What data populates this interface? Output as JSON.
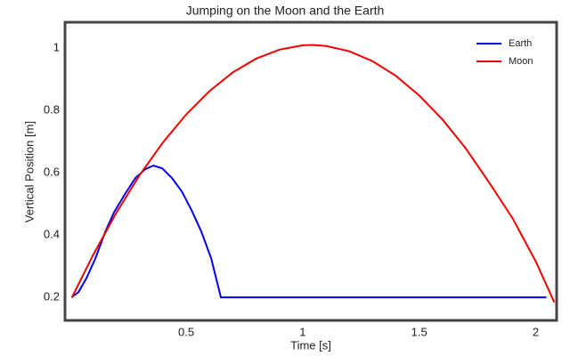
{
  "chart_data": {
    "type": "line",
    "title": "Jumping on the Moon and the Earth",
    "xlabel": "Time [s]",
    "ylabel": "Vertical Position [m]",
    "xlim": [
      -0.02,
      2.09
    ],
    "ylim": [
      0.126,
      1.083
    ],
    "xticks": [
      0.5,
      1,
      1.5,
      2
    ],
    "yticks": [
      0.2,
      0.4,
      0.6,
      0.8,
      1
    ],
    "grid": false,
    "legend": "upper right",
    "series": [
      {
        "name": "Earth",
        "color": "#0000ee",
        "x": [
          0.008,
          0.038,
          0.073,
          0.111,
          0.153,
          0.191,
          0.237,
          0.282,
          0.324,
          0.359,
          0.397,
          0.439,
          0.481,
          0.523,
          0.565,
          0.607,
          0.649,
          2.046
        ],
        "values": [
          0.2,
          0.217,
          0.263,
          0.326,
          0.411,
          0.474,
          0.531,
          0.583,
          0.611,
          0.623,
          0.614,
          0.583,
          0.54,
          0.48,
          0.411,
          0.326,
          0.2,
          0.2
        ]
      },
      {
        "name": "Moon",
        "color": "#ee0000",
        "x": [
          0.01,
          0.1,
          0.2,
          0.3,
          0.4,
          0.5,
          0.6,
          0.7,
          0.8,
          0.9,
          1.0,
          1.04,
          1.1,
          1.2,
          1.3,
          1.4,
          1.5,
          1.6,
          1.7,
          1.8,
          1.9,
          2.0,
          2.08
        ],
        "values": [
          0.2,
          0.335,
          0.471,
          0.592,
          0.697,
          0.787,
          0.862,
          0.922,
          0.966,
          0.995,
          1.009,
          1.01,
          1.007,
          0.99,
          0.958,
          0.911,
          0.848,
          0.771,
          0.678,
          0.569,
          0.455,
          0.316,
          0.184
        ]
      }
    ]
  }
}
